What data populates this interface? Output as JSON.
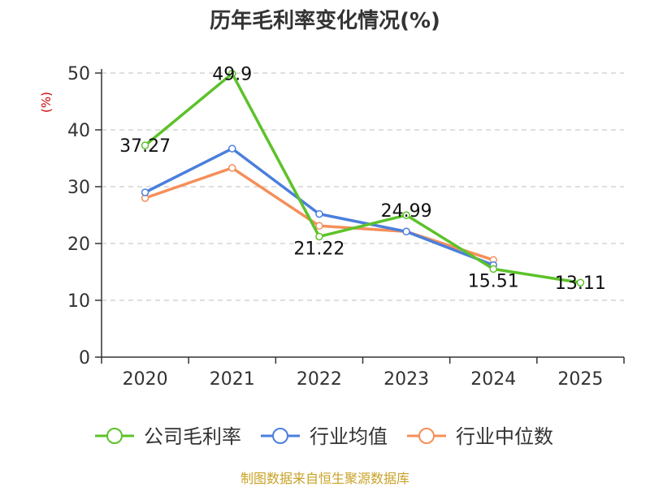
{
  "chart_data": {
    "type": "line",
    "title": "历年毛利率变化情况(%)",
    "ylabel": "(%)",
    "xlabel": "",
    "categories": [
      "2020",
      "2021",
      "2022",
      "2023",
      "2024",
      "2025"
    ],
    "ylim": [
      0,
      50
    ],
    "yticks": [
      0,
      10,
      20,
      30,
      40,
      50
    ],
    "ytick_labels": [
      "0",
      "10",
      "20",
      "30",
      "40",
      "50"
    ],
    "grid": true,
    "legend_position": "bottom",
    "series": [
      {
        "name": "公司毛利率",
        "color": "#5cc22a",
        "values": [
          37.27,
          49.9,
          21.22,
          24.99,
          15.51,
          13.11
        ],
        "labels": [
          "37.27",
          "49.9",
          "21.22",
          "24.99",
          "15.51",
          "13.11"
        ]
      },
      {
        "name": "行业均值",
        "color": "#4a7fdc",
        "values": [
          29.0,
          36.7,
          25.2,
          22.1,
          16.2,
          null
        ],
        "labels": []
      },
      {
        "name": "行业中位数",
        "color": "#f58f5a",
        "values": [
          28.0,
          33.3,
          23.1,
          22.1,
          17.1,
          null
        ],
        "labels": []
      }
    ],
    "source": "制图数据来自恒生聚源数据库"
  }
}
